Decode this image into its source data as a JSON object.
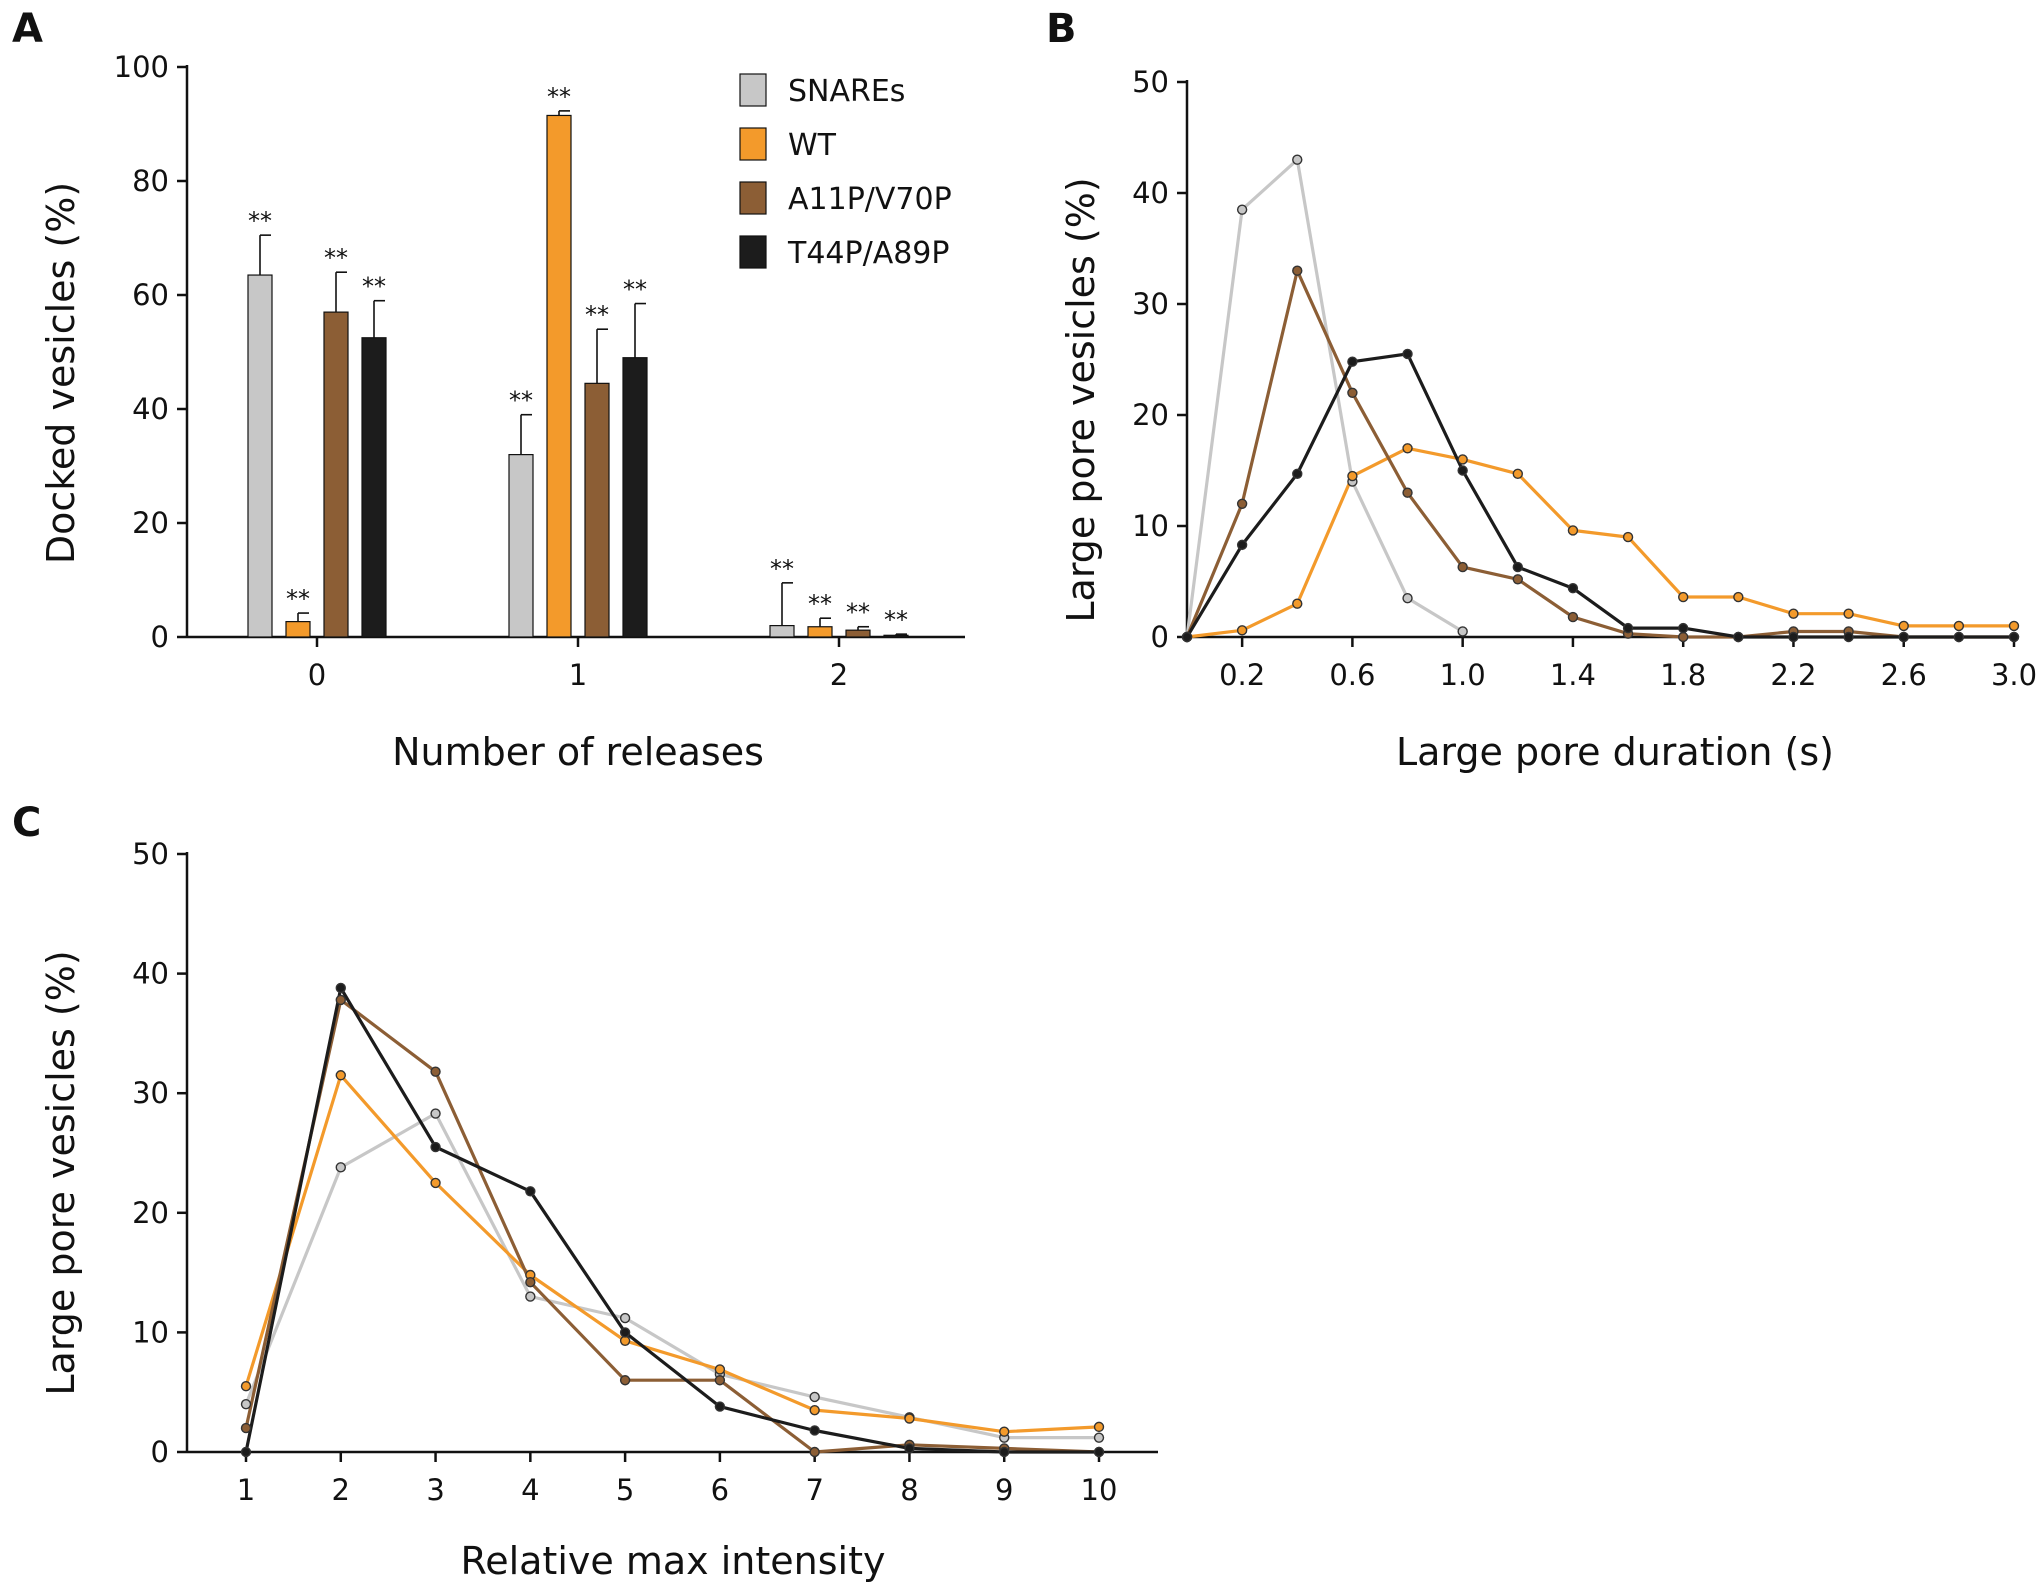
{
  "colors": {
    "SNAREs": "#c7c7c7",
    "WT": "#f39a2b",
    "A11P/V70P": "#8c5e35",
    "T44P/A89P": "#1c1c1c"
  },
  "chart_data": [
    {
      "panel": "A",
      "type": "bar",
      "xlabel": "Number of releases",
      "ylabel": "Docked vesicles (%)",
      "ylim": [
        0,
        100
      ],
      "yticks": [
        "0",
        "20",
        "40",
        "60",
        "80",
        "100"
      ],
      "categories": [
        "0",
        "1",
        "2"
      ],
      "legend": [
        "SNAREs",
        "WT",
        "A11P/V70P",
        "T44P/A89P"
      ],
      "legend_position": "top-right",
      "series": [
        {
          "name": "SNAREs",
          "values": [
            63.5,
            32,
            2
          ],
          "errors": [
            7,
            7,
            7.5
          ],
          "labels": [
            "**",
            "**",
            "**"
          ]
        },
        {
          "name": "WT",
          "values": [
            2.7,
            91.5,
            1.8
          ],
          "errors": [
            1.5,
            0.8,
            1.5
          ],
          "labels": [
            "**",
            "**",
            "**"
          ]
        },
        {
          "name": "A11P/V70P",
          "values": [
            57,
            44.5,
            1.2
          ],
          "errors": [
            7,
            9.5,
            0.6
          ],
          "labels": [
            "**",
            "**",
            "**"
          ]
        },
        {
          "name": "T44P/A89P",
          "values": [
            52.5,
            49,
            0.3
          ],
          "errors": [
            6.5,
            9.5,
            0.2
          ],
          "labels": [
            "**",
            "**",
            "**"
          ]
        }
      ]
    },
    {
      "panel": "B",
      "type": "line",
      "xlabel": "Large pore duration (s)",
      "ylabel": "Large pore vesicles (%)",
      "xlim": [
        0,
        3.0
      ],
      "ylim": [
        0,
        50
      ],
      "xticks": [
        "0.2",
        "0.6",
        "1.0",
        "1.4",
        "1.8",
        "2.2",
        "2.6",
        "3.0"
      ],
      "yticks": [
        "0",
        "10",
        "20",
        "30",
        "40",
        "50"
      ],
      "series": [
        {
          "name": "SNAREs",
          "x": [
            0,
            0.2,
            0.4,
            0.6,
            0.8,
            1.0
          ],
          "y": [
            0,
            38.5,
            43,
            14,
            3.5,
            0.5
          ]
        },
        {
          "name": "WT",
          "x": [
            0,
            0.2,
            0.4,
            0.6,
            0.8,
            1.0,
            1.2,
            1.4,
            1.6,
            1.8,
            2.0,
            2.2,
            2.4,
            2.6,
            2.8,
            3.0
          ],
          "y": [
            0,
            0.6,
            3,
            14.5,
            17,
            16,
            14.7,
            9.6,
            9,
            3.6,
            3.6,
            2.1,
            2.1,
            1,
            1,
            1
          ]
        },
        {
          "name": "A11P/V70P",
          "x": [
            0,
            0.2,
            0.4,
            0.6,
            0.8,
            1.0,
            1.2,
            1.4,
            1.6,
            1.8,
            2.0,
            2.2,
            2.4,
            2.6,
            2.8,
            3.0
          ],
          "y": [
            0,
            12,
            33,
            22,
            13,
            6.3,
            5.2,
            1.8,
            0.3,
            0,
            0,
            0.5,
            0.5,
            0,
            0,
            0
          ]
        },
        {
          "name": "T44P/A89P",
          "x": [
            0,
            0.2,
            0.4,
            0.6,
            0.8,
            1.0,
            1.2,
            1.4,
            1.6,
            1.8,
            2.0,
            2.2,
            2.4,
            2.6,
            2.8,
            3.0
          ],
          "y": [
            0,
            8.3,
            14.7,
            24.8,
            25.5,
            15,
            6.3,
            4.4,
            0.8,
            0.8,
            0,
            0,
            0,
            0,
            0,
            0
          ]
        }
      ]
    },
    {
      "panel": "C",
      "type": "line",
      "xlabel": "Relative max intensity",
      "ylabel": "Large pore vesicles (%)",
      "xlim": [
        0.5,
        10.5
      ],
      "ylim": [
        0,
        50
      ],
      "xticks": [
        "1",
        "2",
        "3",
        "4",
        "5",
        "6",
        "7",
        "8",
        "9",
        "10"
      ],
      "yticks": [
        "0",
        "10",
        "20",
        "30",
        "40",
        "50"
      ],
      "series": [
        {
          "name": "SNAREs",
          "x": [
            1,
            2,
            3,
            4,
            5,
            6,
            7,
            8,
            9,
            10
          ],
          "y": [
            4,
            23.8,
            28.3,
            13,
            11.2,
            6.5,
            4.6,
            2.9,
            1.2,
            1.2
          ]
        },
        {
          "name": "WT",
          "x": [
            1,
            2,
            3,
            4,
            5,
            6,
            7,
            8,
            9,
            10
          ],
          "y": [
            5.5,
            31.5,
            22.5,
            14.8,
            9.3,
            6.9,
            3.5,
            2.8,
            1.7,
            2.1
          ]
        },
        {
          "name": "A11P/V70P",
          "x": [
            1,
            2,
            3,
            4,
            5,
            6,
            7,
            8,
            9,
            10
          ],
          "y": [
            2,
            37.8,
            31.8,
            14.2,
            6,
            6,
            0,
            0.6,
            0.3,
            0
          ]
        },
        {
          "name": "T44P/A89P",
          "x": [
            1,
            2,
            3,
            4,
            5,
            6,
            7,
            8,
            9,
            10
          ],
          "y": [
            0,
            38.8,
            25.5,
            21.8,
            10,
            3.8,
            1.8,
            0.3,
            0,
            0
          ]
        }
      ]
    }
  ],
  "panels": {
    "a": "A",
    "b": "B",
    "c": "C"
  }
}
